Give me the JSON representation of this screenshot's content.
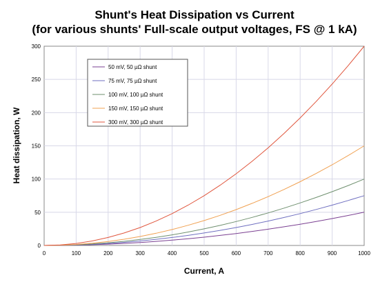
{
  "chart_data": {
    "type": "line",
    "title": "Shunt's Heat Dissipation vs Current",
    "subtitle": "(for various shunts' Full-scale output voltages, FS @ 1 kA)",
    "xlabel": "Current, A",
    "ylabel": "Heat dissipation, W",
    "xlim": [
      0,
      1000
    ],
    "ylim": [
      0,
      300
    ],
    "xticks": [
      0,
      100,
      200,
      300,
      400,
      500,
      600,
      700,
      800,
      900,
      1000
    ],
    "yticks": [
      0,
      50,
      100,
      150,
      200,
      250,
      300
    ],
    "grid": true,
    "legend_position": "top-left",
    "x": [
      0,
      50,
      100,
      150,
      200,
      250,
      300,
      350,
      400,
      450,
      500,
      550,
      600,
      650,
      700,
      750,
      800,
      850,
      900,
      950,
      1000
    ],
    "series": [
      {
        "name": "50 mV, 50 µΩ shunt",
        "color": "#7a3f91",
        "values": [
          0,
          0.125,
          0.5,
          1.125,
          2,
          3.125,
          4.5,
          6.125,
          8,
          10.125,
          12.5,
          15.125,
          18,
          21.125,
          24.5,
          28.125,
          32,
          36.125,
          40.5,
          45.125,
          50
        ]
      },
      {
        "name": "75 mV, 75 µΩ shunt",
        "color": "#6e6ec0",
        "values": [
          0,
          0.1875,
          0.75,
          1.6875,
          3,
          4.6875,
          6.75,
          9.1875,
          12,
          15.1875,
          18.75,
          22.6875,
          27,
          31.6875,
          36.75,
          42.1875,
          48,
          54.1875,
          60.75,
          67.6875,
          75
        ]
      },
      {
        "name": "100 mV, 100 µΩ shunt",
        "color": "#6e8f6e",
        "values": [
          0,
          0.25,
          1,
          2.25,
          4,
          6.25,
          9,
          12.25,
          16,
          20.25,
          25,
          30.25,
          36,
          42.25,
          49,
          56.25,
          64,
          72.25,
          81,
          90.25,
          100
        ]
      },
      {
        "name": "150 mV, 150 µΩ shunt",
        "color": "#f0a050",
        "values": [
          0,
          0.375,
          1.5,
          3.375,
          6,
          9.375,
          13.5,
          18.375,
          24,
          30.375,
          37.5,
          45.375,
          54,
          63.375,
          73.5,
          84.375,
          96,
          108.375,
          121.5,
          135.375,
          150
        ]
      },
      {
        "name": "300 mV, 300 µΩ shunt",
        "color": "#e0553c",
        "values": [
          0,
          0.75,
          3,
          6.75,
          12,
          18.75,
          27,
          36.75,
          48,
          60.75,
          75,
          90.75,
          108,
          126.75,
          147,
          168.75,
          192,
          216.75,
          243,
          270.75,
          300
        ]
      }
    ]
  }
}
